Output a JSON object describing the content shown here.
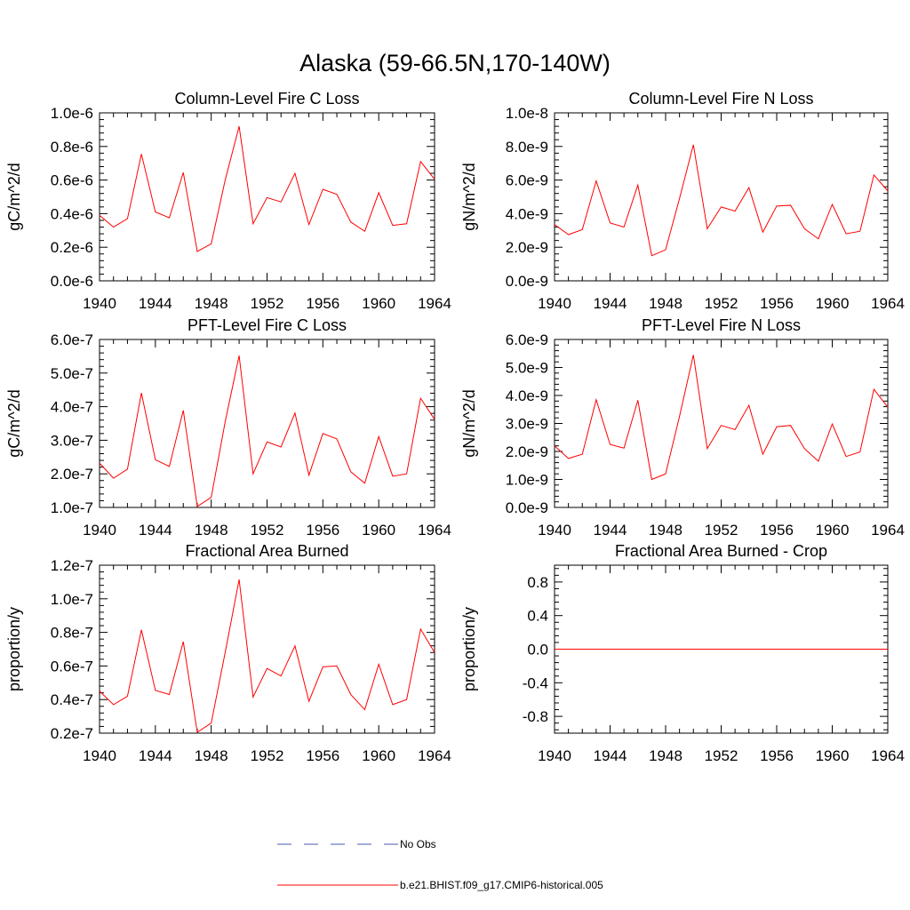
{
  "figure_title": "Alaska (59-66.5N,170-140W)",
  "colors": {
    "series": "#ff0000",
    "obs": "#4a5ab0",
    "axis": "#000000"
  },
  "legend": {
    "obs_label": "No Obs",
    "model_label": "b.e21.BHIST.f09_g17.CMIP6-historical.005"
  },
  "chart_data": [
    {
      "type": "line",
      "title": "Column-Level Fire C Loss",
      "ylabel": "gC/m^2/d",
      "xlabel": "",
      "xlim": [
        1940,
        1964
      ],
      "ylim": [
        0,
        1e-06
      ],
      "xticks": [
        "1940",
        "1944",
        "1948",
        "1952",
        "1956",
        "1960",
        "1964"
      ],
      "yticks": [
        "0.0e-6",
        "0.2e-6",
        "0.4e-6",
        "0.6e-6",
        "0.8e-6",
        "1.0e-6"
      ],
      "x": [
        1940,
        1941,
        1942,
        1943,
        1944,
        1945,
        1946,
        1947,
        1948,
        1949,
        1950,
        1951,
        1952,
        1953,
        1954,
        1955,
        1956,
        1957,
        1958,
        1959,
        1960,
        1961,
        1962,
        1963,
        1964
      ],
      "series": [
        {
          "name": "b.e21.BHIST.f09_g17.CMIP6-historical.005",
          "values": [
            3.9e-07,
            3.2e-07,
            3.7e-07,
            7.55e-07,
            4.1e-07,
            3.75e-07,
            6.45e-07,
            1.75e-07,
            2.2e-07,
            6e-07,
            9.2e-07,
            3.4e-07,
            4.95e-07,
            4.7e-07,
            6.4e-07,
            3.35e-07,
            5.45e-07,
            5.15e-07,
            3.5e-07,
            2.95e-07,
            5.25e-07,
            3.3e-07,
            3.4e-07,
            7.1e-07,
            6.05e-07
          ]
        }
      ]
    },
    {
      "type": "line",
      "title": "Column-Level Fire N Loss",
      "ylabel": "gN/m^2/d",
      "xlabel": "",
      "xlim": [
        1940,
        1964
      ],
      "ylim": [
        0,
        1e-08
      ],
      "xticks": [
        "1940",
        "1944",
        "1948",
        "1952",
        "1956",
        "1960",
        "1964"
      ],
      "yticks": [
        "0.0e-9",
        "2.0e-9",
        "4.0e-9",
        "6.0e-9",
        "8.0e-9",
        "1.0e-8"
      ],
      "x": [
        1940,
        1941,
        1942,
        1943,
        1944,
        1945,
        1946,
        1947,
        1948,
        1949,
        1950,
        1951,
        1952,
        1953,
        1954,
        1955,
        1956,
        1957,
        1958,
        1959,
        1960,
        1961,
        1962,
        1963,
        1964
      ],
      "series": [
        {
          "name": "b.e21.BHIST.f09_g17.CMIP6-historical.005",
          "values": [
            3.35e-09,
            2.75e-09,
            3.05e-09,
            5.95e-09,
            3.45e-09,
            3.2e-09,
            5.7e-09,
            1.5e-09,
            1.85e-09,
            4.9e-09,
            8.1e-09,
            3.1e-09,
            4.4e-09,
            4.15e-09,
            5.55e-09,
            2.9e-09,
            4.45e-09,
            4.5e-09,
            3.1e-09,
            2.5e-09,
            4.55e-09,
            2.8e-09,
            2.95e-09,
            6.3e-09,
            5.35e-09
          ]
        }
      ]
    },
    {
      "type": "line",
      "title": "PFT-Level Fire C Loss",
      "ylabel": "gC/m^2/d",
      "xlabel": "",
      "xlim": [
        1940,
        1964
      ],
      "ylim": [
        1e-07,
        6e-07
      ],
      "xticks": [
        "1940",
        "1944",
        "1948",
        "1952",
        "1956",
        "1960",
        "1964"
      ],
      "yticks": [
        "1.0e-7",
        "2.0e-7",
        "3.0e-7",
        "4.0e-7",
        "5.0e-7",
        "6.0e-7"
      ],
      "x": [
        1940,
        1941,
        1942,
        1943,
        1944,
        1945,
        1946,
        1947,
        1948,
        1949,
        1950,
        1951,
        1952,
        1953,
        1954,
        1955,
        1956,
        1957,
        1958,
        1959,
        1960,
        1961,
        1962,
        1963,
        1964
      ],
      "series": [
        {
          "name": "b.e21.BHIST.f09_g17.CMIP6-historical.005",
          "values": [
            2.32e-07,
            1.87e-07,
            2.14e-07,
            4.41e-07,
            2.42e-07,
            2.22e-07,
            3.89e-07,
            1.03e-07,
            1.3e-07,
            3.55e-07,
            5.52e-07,
            2e-07,
            2.95e-07,
            2.8e-07,
            3.81e-07,
            1.96e-07,
            3.2e-07,
            3.04e-07,
            2.06e-07,
            1.72e-07,
            3.11e-07,
            1.93e-07,
            2e-07,
            4.25e-07,
            3.62e-07
          ]
        }
      ]
    },
    {
      "type": "line",
      "title": "PFT-Level Fire N Loss",
      "ylabel": "gN/m^2/d",
      "xlabel": "",
      "xlim": [
        1940,
        1964
      ],
      "ylim": [
        0,
        6e-09
      ],
      "xticks": [
        "1940",
        "1944",
        "1948",
        "1952",
        "1956",
        "1960",
        "1964"
      ],
      "yticks": [
        "0.0e-9",
        "1.0e-9",
        "2.0e-9",
        "3.0e-9",
        "4.0e-9",
        "5.0e-9",
        "6.0e-9"
      ],
      "x": [
        1940,
        1941,
        1942,
        1943,
        1944,
        1945,
        1946,
        1947,
        1948,
        1949,
        1950,
        1951,
        1952,
        1953,
        1954,
        1955,
        1956,
        1957,
        1958,
        1959,
        1960,
        1961,
        1962,
        1963,
        1964
      ],
      "series": [
        {
          "name": "b.e21.BHIST.f09_g17.CMIP6-historical.005",
          "values": [
            2.2e-09,
            1.75e-09,
            1.9e-09,
            3.85e-09,
            2.25e-09,
            2.12e-09,
            3.83e-09,
            1e-09,
            1.2e-09,
            3.25e-09,
            5.45e-09,
            2.1e-09,
            2.93e-09,
            2.78e-09,
            3.65e-09,
            1.9e-09,
            2.88e-09,
            2.93e-09,
            2.1e-09,
            1.65e-09,
            2.98e-09,
            1.82e-09,
            1.98e-09,
            4.22e-09,
            3.58e-09
          ]
        }
      ]
    },
    {
      "type": "line",
      "title": "Fractional Area Burned",
      "ylabel": "proportion/y",
      "xlabel": "",
      "xlim": [
        1940,
        1964
      ],
      "ylim": [
        2e-08,
        1.2e-07
      ],
      "xticks": [
        "1940",
        "1944",
        "1948",
        "1952",
        "1956",
        "1960",
        "1964"
      ],
      "yticks": [
        "0.2e-7",
        "0.4e-7",
        "0.6e-7",
        "0.8e-7",
        "1.0e-7",
        "1.2e-7"
      ],
      "x": [
        1940,
        1941,
        1942,
        1943,
        1944,
        1945,
        1946,
        1947,
        1948,
        1949,
        1950,
        1951,
        1952,
        1953,
        1954,
        1955,
        1956,
        1957,
        1958,
        1959,
        1960,
        1961,
        1962,
        1963,
        1964
      ],
      "series": [
        {
          "name": "b.e21.BHIST.f09_g17.CMIP6-historical.005",
          "values": [
            4.5e-08,
            3.7e-08,
            4.2e-08,
            8.15e-08,
            4.55e-08,
            4.3e-08,
            7.45e-08,
            2.05e-08,
            2.6e-08,
            6.8e-08,
            1.115e-07,
            4.15e-08,
            5.85e-08,
            5.4e-08,
            7.2e-08,
            3.9e-08,
            5.95e-08,
            6e-08,
            4.3e-08,
            3.4e-08,
            6.1e-08,
            3.7e-08,
            4e-08,
            8.2e-08,
            6.8e-08
          ]
        }
      ]
    },
    {
      "type": "line",
      "title": "Fractional Area Burned - Crop",
      "ylabel": "proportion/y",
      "xlabel": "",
      "xlim": [
        1940,
        1964
      ],
      "ylim": [
        -1.0,
        1.0
      ],
      "xticks": [
        "1940",
        "1944",
        "1948",
        "1952",
        "1956",
        "1960",
        "1964"
      ],
      "yticks": [
        "-0.8",
        "-0.4",
        "0.0",
        "0.4",
        "0.8"
      ],
      "x": [
        1940,
        1941,
        1942,
        1943,
        1944,
        1945,
        1946,
        1947,
        1948,
        1949,
        1950,
        1951,
        1952,
        1953,
        1954,
        1955,
        1956,
        1957,
        1958,
        1959,
        1960,
        1961,
        1962,
        1963,
        1964
      ],
      "series": [
        {
          "name": "b.e21.BHIST.f09_g17.CMIP6-historical.005",
          "values": [
            0,
            0,
            0,
            0,
            0,
            0,
            0,
            0,
            0,
            0,
            0,
            0,
            0,
            0,
            0,
            0,
            0,
            0,
            0,
            0,
            0,
            0,
            0,
            0,
            0
          ]
        }
      ]
    }
  ]
}
